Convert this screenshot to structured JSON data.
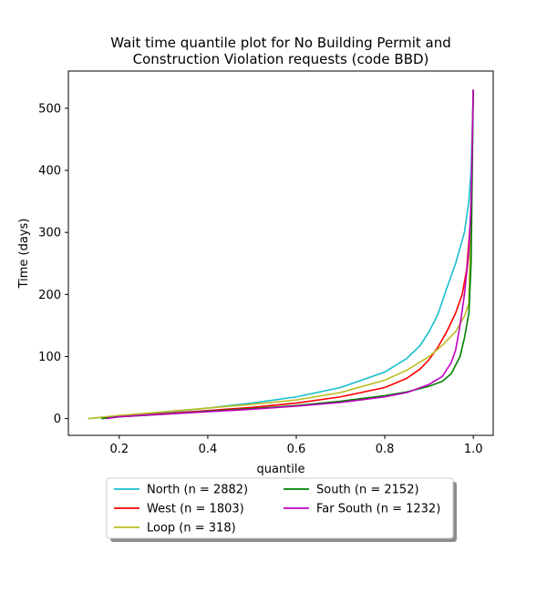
{
  "chart_data": {
    "type": "line",
    "title": [
      "Wait time quantile plot for No Building Permit and",
      "Construction Violation  requests (code BBD)"
    ],
    "xlabel": "quantile",
    "ylabel": "Time (days)",
    "xlim": [
      0.085,
      1.045
    ],
    "ylim": [
      -27,
      560
    ],
    "xticks": [
      0.2,
      0.4,
      0.6,
      0.8,
      1.0
    ],
    "xtick_labels": [
      "0.2",
      "0.4",
      "0.6",
      "0.8",
      "1.0"
    ],
    "yticks": [
      0,
      100,
      200,
      300,
      400,
      500
    ],
    "ytick_labels": [
      "0",
      "100",
      "200",
      "300",
      "400",
      "500"
    ],
    "grid": false,
    "legend": {
      "placement": "below",
      "columns": 2
    },
    "series": [
      {
        "name": "North (n = 2882)",
        "color": "#17becf",
        "points": [
          [
            0.13,
            0
          ],
          [
            0.2,
            4
          ],
          [
            0.3,
            10
          ],
          [
            0.4,
            17
          ],
          [
            0.5,
            25
          ],
          [
            0.6,
            35
          ],
          [
            0.7,
            50
          ],
          [
            0.8,
            75
          ],
          [
            0.85,
            97
          ],
          [
            0.88,
            118
          ],
          [
            0.9,
            140
          ],
          [
            0.92,
            168
          ],
          [
            0.94,
            210
          ],
          [
            0.96,
            250
          ],
          [
            0.98,
            300
          ],
          [
            0.99,
            350
          ],
          [
            0.995,
            400
          ],
          [
            1.0,
            530
          ]
        ]
      },
      {
        "name": "West (n = 1803)",
        "color": "#ff0000",
        "points": [
          [
            0.16,
            0
          ],
          [
            0.2,
            3
          ],
          [
            0.3,
            8
          ],
          [
            0.4,
            13
          ],
          [
            0.5,
            18
          ],
          [
            0.6,
            25
          ],
          [
            0.7,
            35
          ],
          [
            0.8,
            50
          ],
          [
            0.85,
            65
          ],
          [
            0.88,
            80
          ],
          [
            0.9,
            95
          ],
          [
            0.92,
            115
          ],
          [
            0.94,
            140
          ],
          [
            0.96,
            170
          ],
          [
            0.975,
            200
          ],
          [
            0.985,
            240
          ],
          [
            0.995,
            330
          ],
          [
            1.0,
            530
          ]
        ]
      },
      {
        "name": "Loop (n = 318)",
        "color": "#bcbd22",
        "points": [
          [
            0.13,
            0
          ],
          [
            0.2,
            5
          ],
          [
            0.3,
            11
          ],
          [
            0.4,
            17
          ],
          [
            0.5,
            23
          ],
          [
            0.6,
            30
          ],
          [
            0.7,
            42
          ],
          [
            0.8,
            62
          ],
          [
            0.85,
            78
          ],
          [
            0.9,
            100
          ],
          [
            0.93,
            118
          ],
          [
            0.96,
            140
          ],
          [
            0.98,
            165
          ],
          [
            0.99,
            185
          ],
          [
            1.0,
            530
          ]
        ]
      },
      {
        "name": "South (n = 2152)",
        "color": "#008000",
        "points": [
          [
            0.16,
            0
          ],
          [
            0.2,
            3
          ],
          [
            0.3,
            7
          ],
          [
            0.4,
            12
          ],
          [
            0.5,
            16
          ],
          [
            0.6,
            21
          ],
          [
            0.7,
            28
          ],
          [
            0.8,
            37
          ],
          [
            0.85,
            43
          ],
          [
            0.9,
            52
          ],
          [
            0.93,
            60
          ],
          [
            0.95,
            72
          ],
          [
            0.97,
            100
          ],
          [
            0.98,
            130
          ],
          [
            0.99,
            170
          ],
          [
            0.995,
            250
          ],
          [
            1.0,
            530
          ]
        ]
      },
      {
        "name": "Far South (n = 1232)",
        "color": "#bf00bf",
        "points": [
          [
            0.17,
            0
          ],
          [
            0.2,
            3
          ],
          [
            0.3,
            7
          ],
          [
            0.4,
            11
          ],
          [
            0.5,
            15
          ],
          [
            0.6,
            20
          ],
          [
            0.7,
            26
          ],
          [
            0.8,
            35
          ],
          [
            0.85,
            42
          ],
          [
            0.9,
            55
          ],
          [
            0.93,
            68
          ],
          [
            0.95,
            90
          ],
          [
            0.96,
            110
          ],
          [
            0.97,
            150
          ],
          [
            0.98,
            200
          ],
          [
            0.99,
            270
          ],
          [
            0.995,
            350
          ],
          [
            1.0,
            530
          ]
        ]
      }
    ]
  }
}
